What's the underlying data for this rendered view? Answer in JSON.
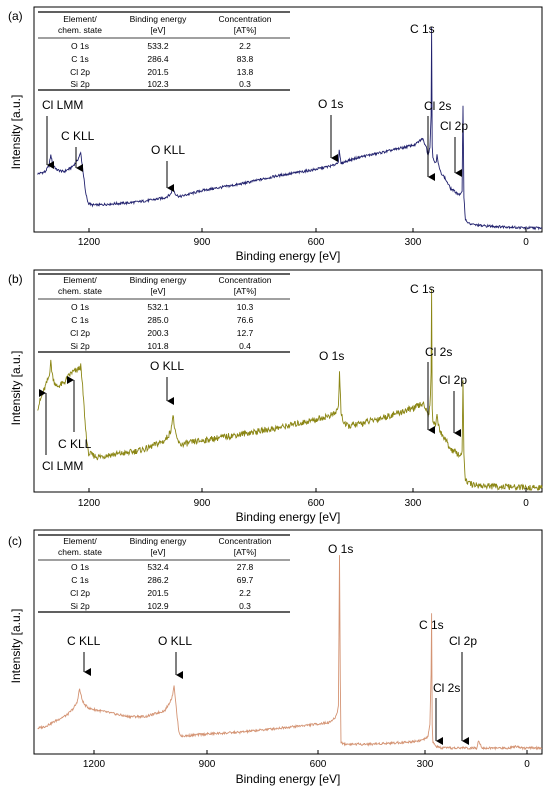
{
  "colors": {
    "a": "#22226e",
    "b": "#8b8614",
    "c": "#d49474"
  },
  "table_headers": [
    [
      "Element/",
      "chem. state"
    ],
    [
      "Binding energy",
      "[eV]"
    ],
    [
      "Concentration",
      "[AT%]"
    ]
  ],
  "chart_data": [
    {
      "panel": "(a)",
      "type": "line",
      "xlabel": "Binding energy [eV]",
      "ylabel": "Intensity [a.u.]",
      "xlim": [
        1350,
        -10
      ],
      "x_reversed": true,
      "xticks": [
        1200,
        900,
        600,
        300,
        0
      ],
      "grid": false,
      "table": [
        [
          "O 1s",
          "533.2",
          "2.2"
        ],
        [
          "C 1s",
          "286.4",
          "83.8"
        ],
        [
          "Cl 2p",
          "201.5",
          "13.8"
        ],
        [
          "Si 2p",
          "102.3",
          "0.3"
        ]
      ],
      "annotations": [
        {
          "text": "Cl LMM",
          "energy": 1305
        },
        {
          "text": "C KLL",
          "energy": 1223
        },
        {
          "text": "O KLL",
          "energy": 975
        },
        {
          "text": "O 1s",
          "energy": 533
        },
        {
          "text": "C 1s",
          "energy": 285
        },
        {
          "text": "Cl 2s",
          "energy": 270
        },
        {
          "text": "Cl 2p",
          "energy": 200
        }
      ],
      "series": [
        {
          "x": [
            1340,
            1320,
            1310,
            1305,
            1300,
            1290,
            1270,
            1250,
            1235,
            1225,
            1220,
            1212,
            1205,
            1195,
            1180,
            1150,
            1100,
            1050,
            1000,
            985,
            978,
            970,
            960,
            900,
            800,
            700,
            600,
            550,
            540,
            535,
            533,
            528,
            515,
            480,
            400,
            330,
            310,
            300,
            295,
            290,
            287,
            285.5,
            284,
            282,
            278,
            273,
            271,
            268,
            262,
            250,
            235,
            220,
            210,
            204,
            201.5,
            199,
            195,
            185,
            170,
            150,
            120,
            100,
            80,
            60,
            30,
            10,
            0,
            -10
          ],
          "y": [
            0.27,
            0.28,
            0.31,
            0.36,
            0.32,
            0.29,
            0.28,
            0.3,
            0.33,
            0.37,
            0.3,
            0.18,
            0.13,
            0.12,
            0.12,
            0.125,
            0.13,
            0.14,
            0.155,
            0.17,
            0.2,
            0.17,
            0.16,
            0.19,
            0.22,
            0.26,
            0.29,
            0.31,
            0.32,
            0.33,
            0.38,
            0.32,
            0.33,
            0.35,
            0.38,
            0.41,
            0.44,
            0.4,
            0.36,
            0.4,
            0.55,
            0.98,
            0.4,
            0.35,
            0.33,
            0.33,
            0.36,
            0.32,
            0.28,
            0.25,
            0.2,
            0.18,
            0.17,
            0.18,
            0.6,
            0.16,
            0.05,
            0.03,
            0.025,
            0.02,
            0.018,
            0.016,
            0.015,
            0.012,
            0.01,
            0.01,
            0.01,
            0.01
          ]
        }
      ]
    },
    {
      "panel": "(b)",
      "type": "line",
      "xlabel": "Binding energy [eV]",
      "ylabel": "Intensity [a.u.]",
      "xlim": [
        1350,
        -10
      ],
      "x_reversed": true,
      "xticks": [
        1200,
        900,
        600,
        300,
        0
      ],
      "grid": false,
      "table": [
        [
          "O 1s",
          "532.1",
          "10.3"
        ],
        [
          "C 1s",
          "285.0",
          "76.6"
        ],
        [
          "Cl 2p",
          "200.3",
          "12.7"
        ],
        [
          "Si 2p",
          "101.8",
          "0.4"
        ]
      ],
      "annotations": [
        {
          "text": "Cl LMM",
          "energy": 1305
        },
        {
          "text": "C KLL",
          "energy": 1223
        },
        {
          "text": "O KLL",
          "energy": 975
        },
        {
          "text": "O 1s",
          "energy": 532
        },
        {
          "text": "C 1s",
          "energy": 285
        },
        {
          "text": "Cl 2s",
          "energy": 270
        },
        {
          "text": "Cl 2p",
          "energy": 200
        }
      ],
      "series": [
        {
          "x": [
            1340,
            1330,
            1320,
            1310,
            1305,
            1300,
            1290,
            1270,
            1250,
            1235,
            1225,
            1220,
            1212,
            1205,
            1195,
            1180,
            1150,
            1100,
            1050,
            1000,
            985,
            978,
            970,
            960,
            900,
            800,
            700,
            600,
            560,
            545,
            535,
            532,
            528,
            520,
            510,
            480,
            400,
            330,
            310,
            300,
            295,
            290,
            287,
            285.5,
            284,
            282,
            278,
            273,
            271,
            268,
            262,
            250,
            235,
            220,
            210,
            204,
            201.5,
            199,
            195,
            185,
            170,
            150,
            120,
            100,
            80,
            60,
            30,
            10,
            0,
            -10
          ],
          "y": [
            0.4,
            0.45,
            0.5,
            0.55,
            0.62,
            0.55,
            0.5,
            0.52,
            0.57,
            0.58,
            0.6,
            0.5,
            0.3,
            0.18,
            0.17,
            0.16,
            0.17,
            0.18,
            0.2,
            0.24,
            0.28,
            0.36,
            0.26,
            0.22,
            0.24,
            0.27,
            0.3,
            0.34,
            0.36,
            0.37,
            0.4,
            0.58,
            0.38,
            0.32,
            0.31,
            0.32,
            0.36,
            0.4,
            0.42,
            0.4,
            0.36,
            0.4,
            0.56,
            0.98,
            0.4,
            0.34,
            0.32,
            0.33,
            0.36,
            0.32,
            0.28,
            0.25,
            0.2,
            0.18,
            0.17,
            0.18,
            0.52,
            0.16,
            0.05,
            0.03,
            0.025,
            0.02,
            0.018,
            0.016,
            0.015,
            0.012,
            0.01,
            0.01,
            0.01,
            0.01
          ]
        }
      ]
    },
    {
      "panel": "(c)",
      "type": "line",
      "xlabel": "Binding energy [eV]",
      "ylabel": "Intensity [a.u.]",
      "xlim": [
        1350,
        -10
      ],
      "x_reversed": true,
      "xticks": [
        1200,
        900,
        600,
        300,
        0
      ],
      "grid": false,
      "table": [
        [
          "O 1s",
          "532.4",
          "27.8"
        ],
        [
          "C 1s",
          "286.2",
          "69.7"
        ],
        [
          "Cl 2p",
          "201.5",
          "2.2"
        ],
        [
          "Si 2p",
          "102.9",
          "0.3"
        ]
      ],
      "annotations": [
        {
          "text": "C KLL",
          "energy": 1225
        },
        {
          "text": "O KLL",
          "energy": 975
        },
        {
          "text": "O 1s",
          "energy": 532
        },
        {
          "text": "C 1s",
          "energy": 285
        },
        {
          "text": "Cl 2s",
          "energy": 270
        },
        {
          "text": "Cl 2p",
          "energy": 200
        }
      ],
      "series": [
        {
          "x": [
            1340,
            1320,
            1300,
            1280,
            1260,
            1245,
            1235,
            1228,
            1222,
            1215,
            1200,
            1150,
            1100,
            1050,
            1000,
            990,
            980,
            975,
            968,
            962,
            955,
            900,
            800,
            700,
            650,
            600,
            560,
            545,
            538,
            535,
            532,
            530,
            528,
            520,
            500,
            450,
            400,
            350,
            310,
            300,
            295,
            290,
            287,
            285.5,
            284,
            282,
            275,
            260,
            240,
            220,
            205,
            201,
            198,
            180,
            165,
            160,
            150,
            130,
            110,
            100,
            80,
            60,
            40,
            20,
            0,
            -10
          ],
          "y": [
            0.12,
            0.13,
            0.15,
            0.17,
            0.19,
            0.22,
            0.25,
            0.32,
            0.27,
            0.24,
            0.22,
            0.2,
            0.18,
            0.18,
            0.21,
            0.24,
            0.28,
            0.34,
            0.2,
            0.1,
            0.08,
            0.09,
            0.1,
            0.12,
            0.13,
            0.14,
            0.15,
            0.17,
            0.2,
            0.24,
            1.0,
            0.36,
            0.05,
            0.04,
            0.04,
            0.04,
            0.045,
            0.05,
            0.06,
            0.07,
            0.08,
            0.14,
            0.4,
            0.7,
            0.14,
            0.05,
            0.03,
            0.02,
            0.02,
            0.02,
            0.02,
            0.025,
            0.02,
            0.02,
            0.02,
            0.06,
            0.02,
            0.02,
            0.02,
            0.02,
            0.02,
            0.03,
            0.02,
            0.02,
            0.02,
            0.02
          ]
        }
      ]
    }
  ]
}
